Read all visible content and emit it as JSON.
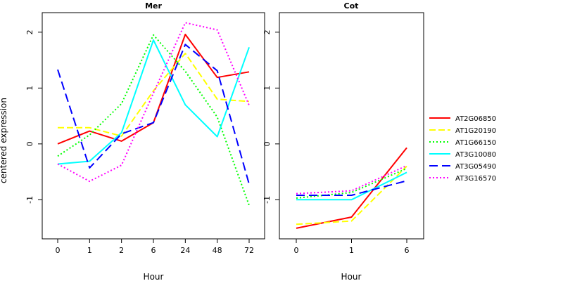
{
  "figure": {
    "ylabel": "centered expression"
  },
  "chart_data": [
    {
      "type": "line",
      "title": "Mer",
      "xlabel": "Hour",
      "ylabel": "centered expression",
      "categories": [
        "0",
        "1",
        "2",
        "6",
        "24",
        "48",
        "72"
      ],
      "ylim": [
        -1.7,
        2.35
      ],
      "yticks": [
        -1,
        0,
        1,
        2
      ],
      "grid": false,
      "series": [
        {
          "name": "AT2G06850",
          "color": "#ff0000",
          "dash": "solid",
          "values": [
            0.0,
            0.23,
            0.05,
            0.38,
            1.96,
            1.19,
            1.29
          ]
        },
        {
          "name": "AT1G20190",
          "color": "#ffff00",
          "dash": "dashed",
          "values": [
            0.29,
            0.29,
            0.14,
            0.95,
            1.62,
            0.8,
            0.76
          ]
        },
        {
          "name": "AT1G66150",
          "color": "#00ff00",
          "dash": "dotted",
          "values": [
            -0.22,
            0.16,
            0.72,
            1.95,
            1.3,
            0.48,
            -1.1
          ]
        },
        {
          "name": "AT3G10080",
          "color": "#00ffff",
          "dash": "solid",
          "values": [
            -0.36,
            -0.31,
            0.2,
            1.86,
            0.7,
            0.13,
            1.73
          ]
        },
        {
          "name": "AT3G05490",
          "color": "#0000ff",
          "dash": "longdash",
          "values": [
            1.33,
            -0.43,
            0.18,
            0.38,
            1.78,
            1.31,
            -0.72
          ]
        },
        {
          "name": "AT3G16570",
          "color": "#ff00ff",
          "dash": "dotted",
          "values": [
            -0.36,
            -0.67,
            -0.38,
            0.91,
            2.17,
            2.04,
            0.69
          ]
        }
      ]
    },
    {
      "type": "line",
      "title": "Cot",
      "xlabel": "Hour",
      "categories": [
        "0",
        "1",
        "6"
      ],
      "x": [
        0,
        1,
        2
      ],
      "ylim": [
        -1.7,
        2.35
      ],
      "yticks": [
        -1,
        0,
        1,
        2
      ],
      "grid": false,
      "series": [
        {
          "name": "AT2G06850",
          "color": "#ff0000",
          "dash": "solid",
          "values": [
            -1.51,
            -1.31,
            -0.07
          ]
        },
        {
          "name": "AT1G20190",
          "color": "#ffff00",
          "dash": "dashed",
          "values": [
            -1.44,
            -1.38,
            -0.4
          ]
        },
        {
          "name": "AT1G66150",
          "color": "#00ff00",
          "dash": "dotted",
          "values": [
            -0.97,
            -0.87,
            -0.44
          ]
        },
        {
          "name": "AT3G10080",
          "color": "#00ffff",
          "dash": "solid",
          "values": [
            -1.0,
            -1.0,
            -0.51
          ]
        },
        {
          "name": "AT3G05490",
          "color": "#0000ff",
          "dash": "longdash",
          "values": [
            -0.92,
            -0.92,
            -0.66
          ]
        },
        {
          "name": "AT3G16570",
          "color": "#ff00ff",
          "dash": "dotted",
          "values": [
            -0.89,
            -0.84,
            -0.39
          ]
        }
      ]
    }
  ],
  "legend": {
    "placement": "right",
    "entries": [
      {
        "name": "AT2G06850",
        "color": "#ff0000",
        "dash": "solid"
      },
      {
        "name": "AT1G20190",
        "color": "#ffff00",
        "dash": "dashed"
      },
      {
        "name": "AT1G66150",
        "color": "#00ff00",
        "dash": "dotted"
      },
      {
        "name": "AT3G10080",
        "color": "#00ffff",
        "dash": "solid"
      },
      {
        "name": "AT3G05490",
        "color": "#0000ff",
        "dash": "longdash"
      },
      {
        "name": "AT3G16570",
        "color": "#ff00ff",
        "dash": "dotted"
      }
    ]
  }
}
